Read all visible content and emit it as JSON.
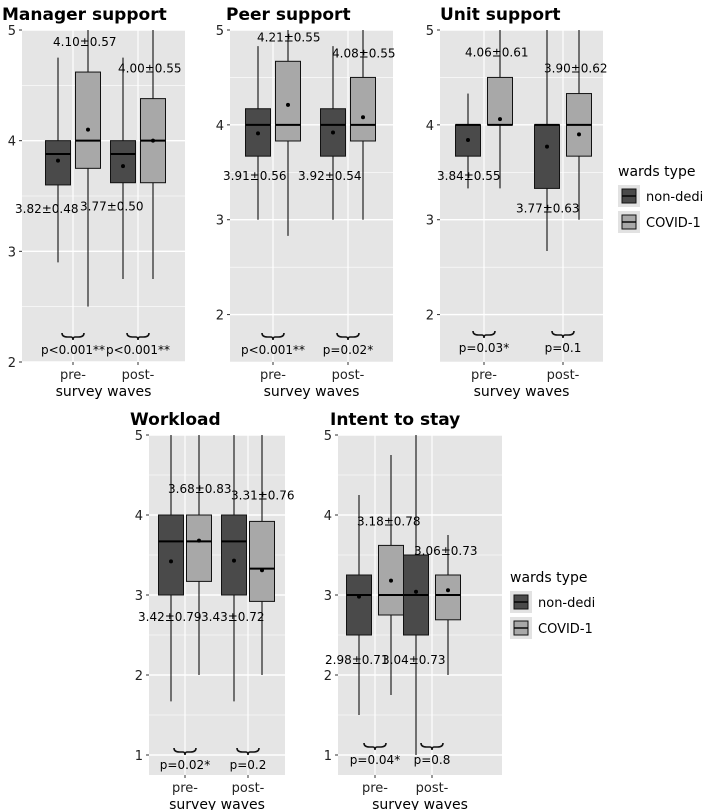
{
  "chart_data": [
    {
      "type": "boxplot",
      "title": "Manager support",
      "xlabel": "survey waves",
      "categories": [
        "pre-",
        "post-"
      ],
      "ylim": [
        2,
        5
      ],
      "yticks": [
        "2",
        "3",
        "4",
        "5"
      ],
      "groups": [
        {
          "wave": "pre-",
          "p_label": "p<0.001**",
          "boxes": [
            {
              "series": "non-dedi",
              "min": 2.9,
              "q1": 3.6,
              "median": 3.88,
              "q3": 4.0,
              "max": 4.75,
              "mean": 3.82,
              "label": "3.82±0.48"
            },
            {
              "series": "COVID-1",
              "min": 2.5,
              "q1": 3.75,
              "median": 4.0,
              "q3": 4.62,
              "max": 5.0,
              "mean": 4.1,
              "label": "4.10±0.57"
            }
          ]
        },
        {
          "wave": "post-",
          "p_label": "p<0.001**",
          "boxes": [
            {
              "series": "non-dedi",
              "min": 2.75,
              "q1": 3.62,
              "median": 3.88,
              "q3": 4.0,
              "max": 4.75,
              "mean": 3.77,
              "label": "3.77±0.50"
            },
            {
              "series": "COVID-1",
              "min": 2.75,
              "q1": 3.62,
              "median": 4.0,
              "q3": 4.38,
              "max": 5.0,
              "mean": 4.0,
              "label": "4.00±0.55"
            }
          ]
        }
      ]
    },
    {
      "type": "boxplot",
      "title": "Peer support",
      "xlabel": "survey waves",
      "categories": [
        "pre-",
        "post-"
      ],
      "ylim": [
        1.5,
        5
      ],
      "yticks": [
        "2",
        "3",
        "4",
        "5"
      ],
      "groups": [
        {
          "wave": "pre-",
          "p_label": "p<0.001**",
          "boxes": [
            {
              "series": "non-dedi",
              "min": 3.0,
              "q1": 3.67,
              "median": 4.0,
              "q3": 4.17,
              "max": 4.83,
              "mean": 3.91,
              "label": "3.91±0.56"
            },
            {
              "series": "COVID-1",
              "min": 2.83,
              "q1": 3.83,
              "median": 4.0,
              "q3": 4.67,
              "max": 5.0,
              "mean": 4.21,
              "label": "4.21±0.55"
            }
          ]
        },
        {
          "wave": "post-",
          "p_label": "p=0.02*",
          "boxes": [
            {
              "series": "non-dedi",
              "min": 3.0,
              "q1": 3.67,
              "median": 4.0,
              "q3": 4.17,
              "max": 4.83,
              "mean": 3.92,
              "label": "3.92±0.54"
            },
            {
              "series": "COVID-1",
              "min": 3.0,
              "q1": 3.83,
              "median": 4.0,
              "q3": 4.5,
              "max": 5.0,
              "mean": 4.08,
              "label": "4.08±0.55"
            }
          ]
        }
      ]
    },
    {
      "type": "boxplot",
      "title": "Unit support",
      "xlabel": "survey waves",
      "categories": [
        "pre-",
        "post-"
      ],
      "ylim": [
        1.5,
        5
      ],
      "yticks": [
        "2",
        "3",
        "4",
        "5"
      ],
      "groups": [
        {
          "wave": "pre-",
          "p_label": "p=0.03*",
          "boxes": [
            {
              "series": "non-dedi",
              "min": 3.33,
              "q1": 3.67,
              "median": 4.0,
              "q3": 4.0,
              "max": 4.33,
              "mean": 3.84,
              "label": "3.84±0.55"
            },
            {
              "series": "COVID-1",
              "min": 3.33,
              "q1": 4.0,
              "median": 4.0,
              "q3": 4.5,
              "max": 5.0,
              "mean": 4.06,
              "label": "4.06±0.61"
            }
          ]
        },
        {
          "wave": "post-",
          "p_label": "p=0.1",
          "boxes": [
            {
              "series": "non-dedi",
              "min": 2.67,
              "q1": 3.33,
              "median": 4.0,
              "q3": 4.0,
              "max": 5.0,
              "mean": 3.77,
              "label": "3.77±0.63"
            },
            {
              "series": "COVID-1",
              "min": 3.0,
              "q1": 3.67,
              "median": 4.0,
              "q3": 4.33,
              "max": 5.0,
              "mean": 3.9,
              "label": "3.90±0.62"
            }
          ]
        }
      ]
    },
    {
      "type": "boxplot",
      "title": "Workload",
      "xlabel": "survey waves",
      "categories": [
        "pre-",
        "post-"
      ],
      "ylim": [
        0.75,
        5
      ],
      "yticks": [
        "1",
        "2",
        "3",
        "4",
        "5"
      ],
      "groups": [
        {
          "wave": "pre-",
          "p_label": "p=0.02*",
          "boxes": [
            {
              "series": "non-dedi",
              "min": 1.67,
              "q1": 3.0,
              "median": 3.67,
              "q3": 4.0,
              "max": 5.0,
              "mean": 3.42,
              "label": "3.42±0.79"
            },
            {
              "series": "COVID-1",
              "min": 2.0,
              "q1": 3.17,
              "median": 3.67,
              "q3": 4.0,
              "max": 5.0,
              "mean": 3.68,
              "label": "3.68±0.83"
            }
          ]
        },
        {
          "wave": "post-",
          "p_label": "p=0.2",
          "boxes": [
            {
              "series": "non-dedi",
              "min": 1.67,
              "q1": 3.0,
              "median": 3.67,
              "q3": 4.0,
              "max": 5.0,
              "mean": 3.43,
              "label": "3.43±0.72"
            },
            {
              "series": "COVID-1",
              "min": 2.0,
              "q1": 2.92,
              "median": 3.33,
              "q3": 3.92,
              "max": 5.0,
              "mean": 3.31,
              "label": "3.31±0.76"
            }
          ]
        }
      ]
    },
    {
      "type": "boxplot",
      "title": "Intent to stay",
      "xlabel": "survey waves",
      "categories": [
        "pre-",
        "post-"
      ],
      "ylim": [
        0.75,
        5
      ],
      "yticks": [
        "1",
        "2",
        "3",
        "4",
        "5"
      ],
      "groups": [
        {
          "wave": "pre-",
          "p_label": "p=0.04*",
          "boxes": [
            {
              "series": "non-dedi",
              "min": 1.5,
              "q1": 2.5,
              "median": 3.0,
              "q3": 3.25,
              "max": 4.25,
              "mean": 2.98,
              "label": "2.98±0.71"
            },
            {
              "series": "COVID-1",
              "min": 1.75,
              "q1": 2.75,
              "median": 3.0,
              "q3": 3.62,
              "max": 4.75,
              "mean": 3.18,
              "label": "3.18±0.78"
            }
          ]
        },
        {
          "wave": "post-",
          "p_label": "p=0.8",
          "boxes": [
            {
              "series": "non-dedi",
              "min": 1.0,
              "q1": 2.5,
              "median": 3.0,
              "q3": 3.5,
              "max": 5.0,
              "mean": 3.04,
              "label": "3.04±0.73"
            },
            {
              "series": "COVID-1",
              "min": 2.0,
              "q1": 2.69,
              "median": 3.0,
              "q3": 3.25,
              "max": 3.75,
              "mean": 3.06,
              "label": "3.06±0.73"
            }
          ]
        }
      ]
    }
  ],
  "legend": {
    "title": "wards type",
    "items": [
      {
        "label": "non-dedi",
        "color": "#4a4a4a"
      },
      {
        "label": "COVID-1",
        "color": "#a8a8a8"
      }
    ]
  },
  "colors": {
    "panel_bg": "#e5e5e5",
    "grid": "#ffffff",
    "non_dedi": "#4a4a4a",
    "covid": "#a8a8a8"
  }
}
